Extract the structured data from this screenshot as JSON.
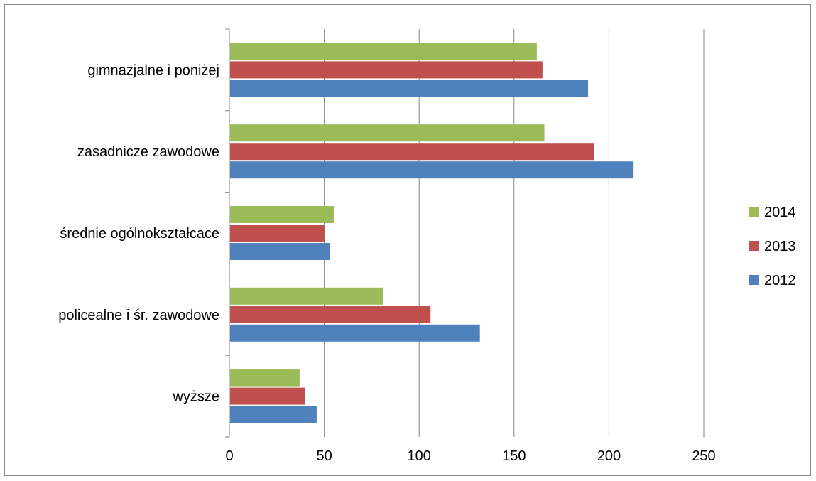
{
  "chart_data": {
    "type": "bar",
    "orientation": "horizontal",
    "categories": [
      "wyższe",
      "policealne i śr. zawodowe",
      "średnie ogólnokształcace",
      "zasadnicze zawodowe",
      "gimnazjalne i poniżej"
    ],
    "series": [
      {
        "name": "2012",
        "color": "#4F81BD",
        "values": [
          46,
          132,
          53,
          213,
          189
        ]
      },
      {
        "name": "2013",
        "color": "#C0504D",
        "values": [
          40,
          106,
          50,
          192,
          165
        ]
      },
      {
        "name": "2014",
        "color": "#9BBB59",
        "values": [
          37,
          81,
          55,
          166,
          162
        ]
      }
    ],
    "xlim": [
      0,
      250
    ],
    "xticks": [
      "0",
      "50",
      "100",
      "150",
      "200",
      "250"
    ],
    "grid": "vertical major gridlines",
    "legend": {
      "position": "right",
      "order": [
        "2014",
        "2013",
        "2012"
      ]
    }
  }
}
